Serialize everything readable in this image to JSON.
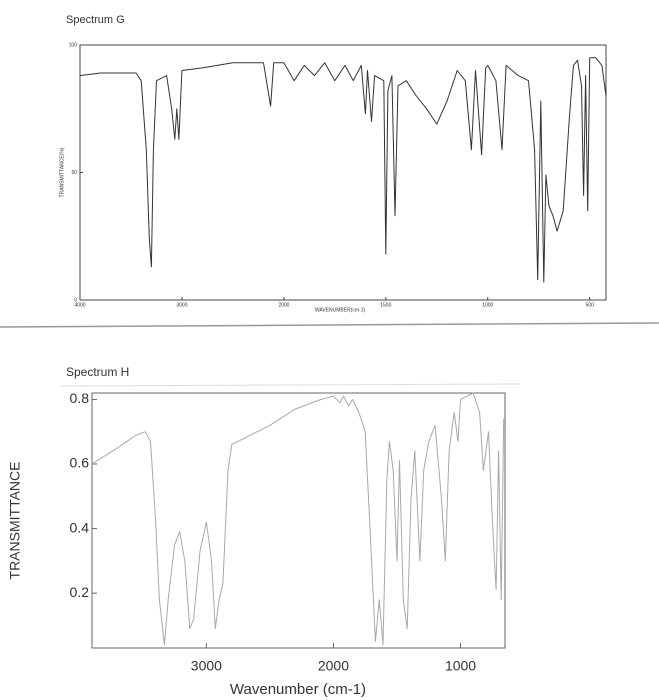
{
  "chart_data": [
    {
      "type": "line",
      "title": "Spectrum G",
      "x_label": "WAVENUMBER(cm-1)",
      "y_label": "TRANSMITTANCE(%)",
      "xscale": "piecewise",
      "color": "#333333",
      "xlim": [
        4000,
        420
      ],
      "ylim": [
        0,
        100
      ],
      "xticks": [
        4000,
        3000,
        2000,
        1500,
        1000,
        500
      ],
      "yticks": [
        0,
        50,
        100
      ],
      "x": [
        4000,
        3800,
        3600,
        3450,
        3400,
        3350,
        3320,
        3300,
        3280,
        3250,
        3150,
        3100,
        3070,
        3050,
        3030,
        3000,
        2800,
        2500,
        2200,
        2130,
        2100,
        2000,
        1950,
        1900,
        1850,
        1800,
        1750,
        1700,
        1660,
        1620,
        1600,
        1590,
        1570,
        1555,
        1510,
        1500,
        1490,
        1470,
        1455,
        1440,
        1400,
        1350,
        1300,
        1250,
        1200,
        1150,
        1110,
        1080,
        1060,
        1030,
        1010,
        1000,
        960,
        930,
        910,
        850,
        800,
        770,
        755,
        740,
        725,
        715,
        700,
        680,
        660,
        630,
        600,
        580,
        560,
        540,
        530,
        520,
        510,
        500,
        470,
        440,
        420
      ],
      "values": [
        88,
        89,
        89,
        89,
        86,
        59,
        24,
        13,
        59,
        86,
        88,
        75,
        63,
        75,
        63,
        90,
        91,
        93,
        93,
        76,
        93,
        93,
        86,
        92,
        88,
        93,
        86,
        92,
        86,
        92,
        73,
        90,
        70,
        88,
        86,
        18,
        82,
        88,
        33,
        84,
        86,
        80,
        75,
        69,
        78,
        90,
        86,
        59,
        90,
        57,
        91,
        92,
        86,
        59,
        92,
        88,
        86,
        59,
        8,
        78,
        7,
        49,
        37,
        33,
        27,
        35,
        71,
        92,
        94,
        84,
        41,
        88,
        35,
        95,
        95,
        92,
        80
      ]
    },
    {
      "type": "line",
      "title": "Spectrum H",
      "x_label": "Wavenumber (cm-1)",
      "y_label": "TRANSMITTANCE",
      "color": "#a8a8a8",
      "xlim": [
        3900,
        650
      ],
      "ylim": [
        0.03,
        0.82
      ],
      "xticks": [
        3000,
        2000,
        1000
      ],
      "yticks": [
        0.2,
        0.4,
        0.6,
        0.8
      ],
      "x": [
        3900,
        3700,
        3550,
        3480,
        3440,
        3400,
        3370,
        3330,
        3300,
        3250,
        3210,
        3170,
        3130,
        3100,
        3050,
        3000,
        2960,
        2930,
        2900,
        2870,
        2830,
        2800,
        2500,
        2300,
        2100,
        2000,
        1950,
        1920,
        1880,
        1850,
        1800,
        1750,
        1700,
        1670,
        1640,
        1610,
        1580,
        1560,
        1530,
        1500,
        1480,
        1450,
        1420,
        1390,
        1360,
        1320,
        1290,
        1250,
        1200,
        1150,
        1120,
        1090,
        1050,
        1020,
        1000,
        950,
        900,
        850,
        820,
        780,
        750,
        720,
        700,
        680,
        660
      ],
      "values": [
        0.6,
        0.65,
        0.69,
        0.7,
        0.67,
        0.43,
        0.18,
        0.04,
        0.18,
        0.35,
        0.39,
        0.3,
        0.09,
        0.12,
        0.33,
        0.42,
        0.3,
        0.09,
        0.18,
        0.23,
        0.58,
        0.66,
        0.72,
        0.77,
        0.8,
        0.81,
        0.79,
        0.81,
        0.78,
        0.8,
        0.76,
        0.7,
        0.3,
        0.05,
        0.18,
        0.04,
        0.55,
        0.67,
        0.58,
        0.3,
        0.61,
        0.18,
        0.09,
        0.49,
        0.64,
        0.3,
        0.58,
        0.67,
        0.72,
        0.49,
        0.3,
        0.64,
        0.76,
        0.67,
        0.8,
        0.81,
        0.82,
        0.76,
        0.58,
        0.7,
        0.43,
        0.21,
        0.64,
        0.18,
        0.74
      ]
    }
  ]
}
